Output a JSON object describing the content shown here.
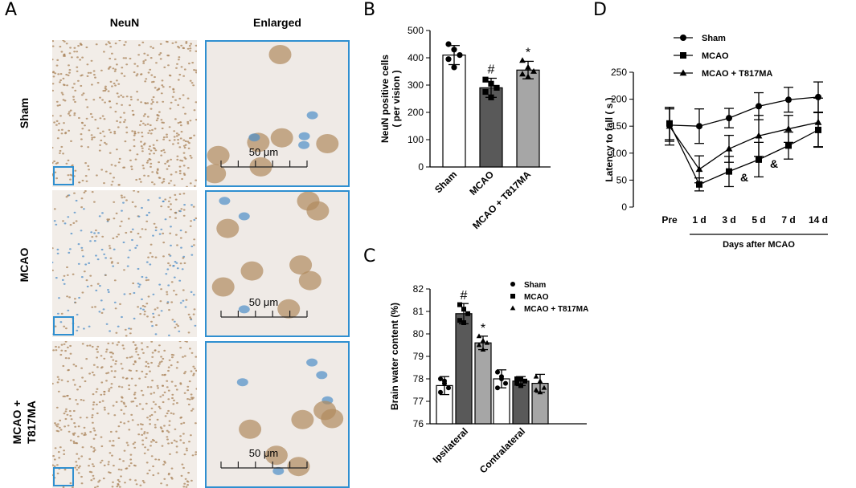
{
  "panels": {
    "A": {
      "letter": "A",
      "col_headers": [
        "NeuN",
        "Enlarged"
      ],
      "rows": [
        "Sham",
        "MCAO",
        "MCAO +\nT817MA"
      ],
      "scale_label": "50 μm",
      "colors": {
        "frame": "#2f8fd0",
        "brown": "#a9835a",
        "blue": "#4f8ec8",
        "bg": "#f2ede8"
      }
    },
    "B": {
      "letter": "B"
    },
    "C": {
      "letter": "C"
    },
    "D": {
      "letter": "D"
    }
  },
  "chart_data": [
    {
      "id": "B",
      "type": "bar",
      "ylabel": "NeuN positive cells\n( per vision )",
      "ylim": [
        0,
        500
      ],
      "yticks": [
        0,
        100,
        200,
        300,
        400,
        500
      ],
      "categories": [
        "Sham",
        "MCAO",
        "MCAO + T817MA"
      ],
      "values": [
        410,
        290,
        355
      ],
      "errors": [
        35,
        35,
        32
      ],
      "points": [
        [
          450,
          430,
          410,
          395,
          365
        ],
        [
          320,
          305,
          290,
          275,
          255
        ],
        [
          390,
          365,
          350,
          340,
          330
        ]
      ],
      "markers": [
        "circle",
        "square",
        "triangle"
      ],
      "fills": [
        "#ffffff",
        "#595959",
        "#a6a6a6"
      ],
      "annotations": [
        "",
        "#",
        "*"
      ]
    },
    {
      "id": "C",
      "type": "bar",
      "ylabel": "Brain water content (%)",
      "ylim": [
        76,
        82
      ],
      "yticks": [
        76,
        77,
        78,
        79,
        80,
        81,
        82
      ],
      "categories": [
        "Ipsilateral",
        "Contralateral"
      ],
      "series": [
        {
          "name": "Sham",
          "marker": "circle",
          "fill": "#ffffff",
          "values": [
            77.7,
            78.0
          ],
          "errors": [
            0.4,
            0.4
          ],
          "points": [
            [
              78.0,
              77.8,
              77.6,
              77.4,
              77.9
            ],
            [
              78.3,
              78.0,
              77.8,
              77.6,
              78.1
            ]
          ],
          "annotations": [
            "",
            ""
          ]
        },
        {
          "name": "MCAO",
          "marker": "square",
          "fill": "#595959",
          "values": [
            80.9,
            77.9
          ],
          "errors": [
            0.45,
            0.2
          ],
          "points": [
            [
              81.3,
              81.1,
              80.9,
              80.6,
              80.5
            ],
            [
              78.0,
              78.0,
              77.9,
              77.8,
              77.7
            ]
          ],
          "annotations": [
            "#",
            ""
          ]
        },
        {
          "name": "MCAO + T817MA",
          "marker": "triangle",
          "fill": "#a6a6a6",
          "values": [
            79.6,
            77.8
          ],
          "errors": [
            0.3,
            0.4
          ],
          "points": [
            [
              79.9,
              79.7,
              79.6,
              79.5,
              79.3
            ],
            [
              78.1,
              77.9,
              77.6,
              77.5,
              77.4
            ]
          ],
          "annotations": [
            "*",
            ""
          ]
        }
      ]
    },
    {
      "id": "D",
      "type": "line",
      "ylabel": "Latency to fall ( s )",
      "xlabel": "Days after MCAO",
      "ylim": [
        0,
        250
      ],
      "yticks": [
        0,
        50,
        100,
        150,
        200,
        250
      ],
      "x": [
        "Pre",
        "1 d",
        "3 d",
        "5 d",
        "7 d",
        "14 d"
      ],
      "series": [
        {
          "name": "Sham",
          "marker": "circle",
          "values": [
            152,
            150,
            165,
            187,
            199,
            204
          ],
          "errors": [
            30,
            32,
            18,
            25,
            23,
            28
          ]
        },
        {
          "name": "MCAO",
          "marker": "square",
          "values": [
            155,
            42,
            66,
            88,
            114,
            143
          ],
          "errors": [
            30,
            12,
            28,
            32,
            25,
            32
          ]
        },
        {
          "name": "MCAO + T817MA",
          "marker": "triangle",
          "values": [
            150,
            70,
            108,
            132,
            145,
            157
          ],
          "errors": [
            35,
            25,
            25,
            38,
            25,
            45
          ]
        }
      ],
      "annotations": [
        {
          "x": "3 d",
          "y": 55,
          "text": "&"
        },
        {
          "x": "5 d",
          "y": 80,
          "text": "&"
        }
      ]
    }
  ]
}
